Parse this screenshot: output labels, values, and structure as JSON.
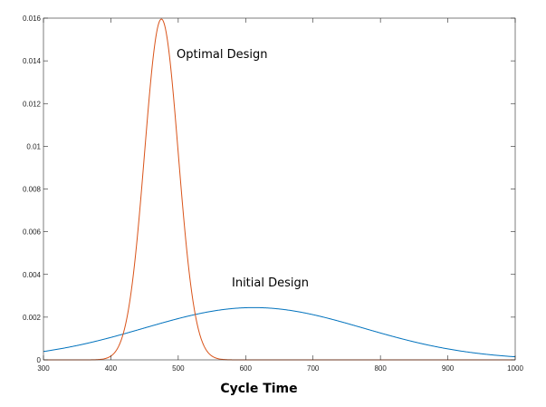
{
  "chart_data": {
    "type": "line",
    "xlabel": "Cycle Time",
    "ylabel": "",
    "xlim": [
      300,
      1000
    ],
    "ylim": [
      0,
      0.016
    ],
    "x_ticks": [
      300,
      400,
      500,
      600,
      700,
      800,
      900,
      1000
    ],
    "y_ticks": [
      0,
      0.002,
      0.004,
      0.006,
      0.008,
      0.01,
      0.012,
      0.014,
      0.016
    ],
    "x_tick_labels": [
      "300",
      "400",
      "500",
      "600",
      "700",
      "800",
      "900",
      "1000"
    ],
    "y_tick_labels": [
      "0",
      "0.002",
      "0.004",
      "0.006",
      "0.008",
      "0.01",
      "0.012",
      "0.014",
      "0.016"
    ],
    "grid": false,
    "legend": "none",
    "series": [
      {
        "name": "Initial Design",
        "color": "#0072BD",
        "distribution": "normal",
        "mean": 612,
        "std": 163
      },
      {
        "name": "Optimal Design",
        "color": "#D95319",
        "distribution": "normal",
        "mean": 475,
        "std": 25
      }
    ],
    "annotations": [
      {
        "text": "Optimal Design",
        "series": "Optimal Design"
      },
      {
        "text": "Initial Design",
        "series": "Initial Design"
      }
    ]
  }
}
